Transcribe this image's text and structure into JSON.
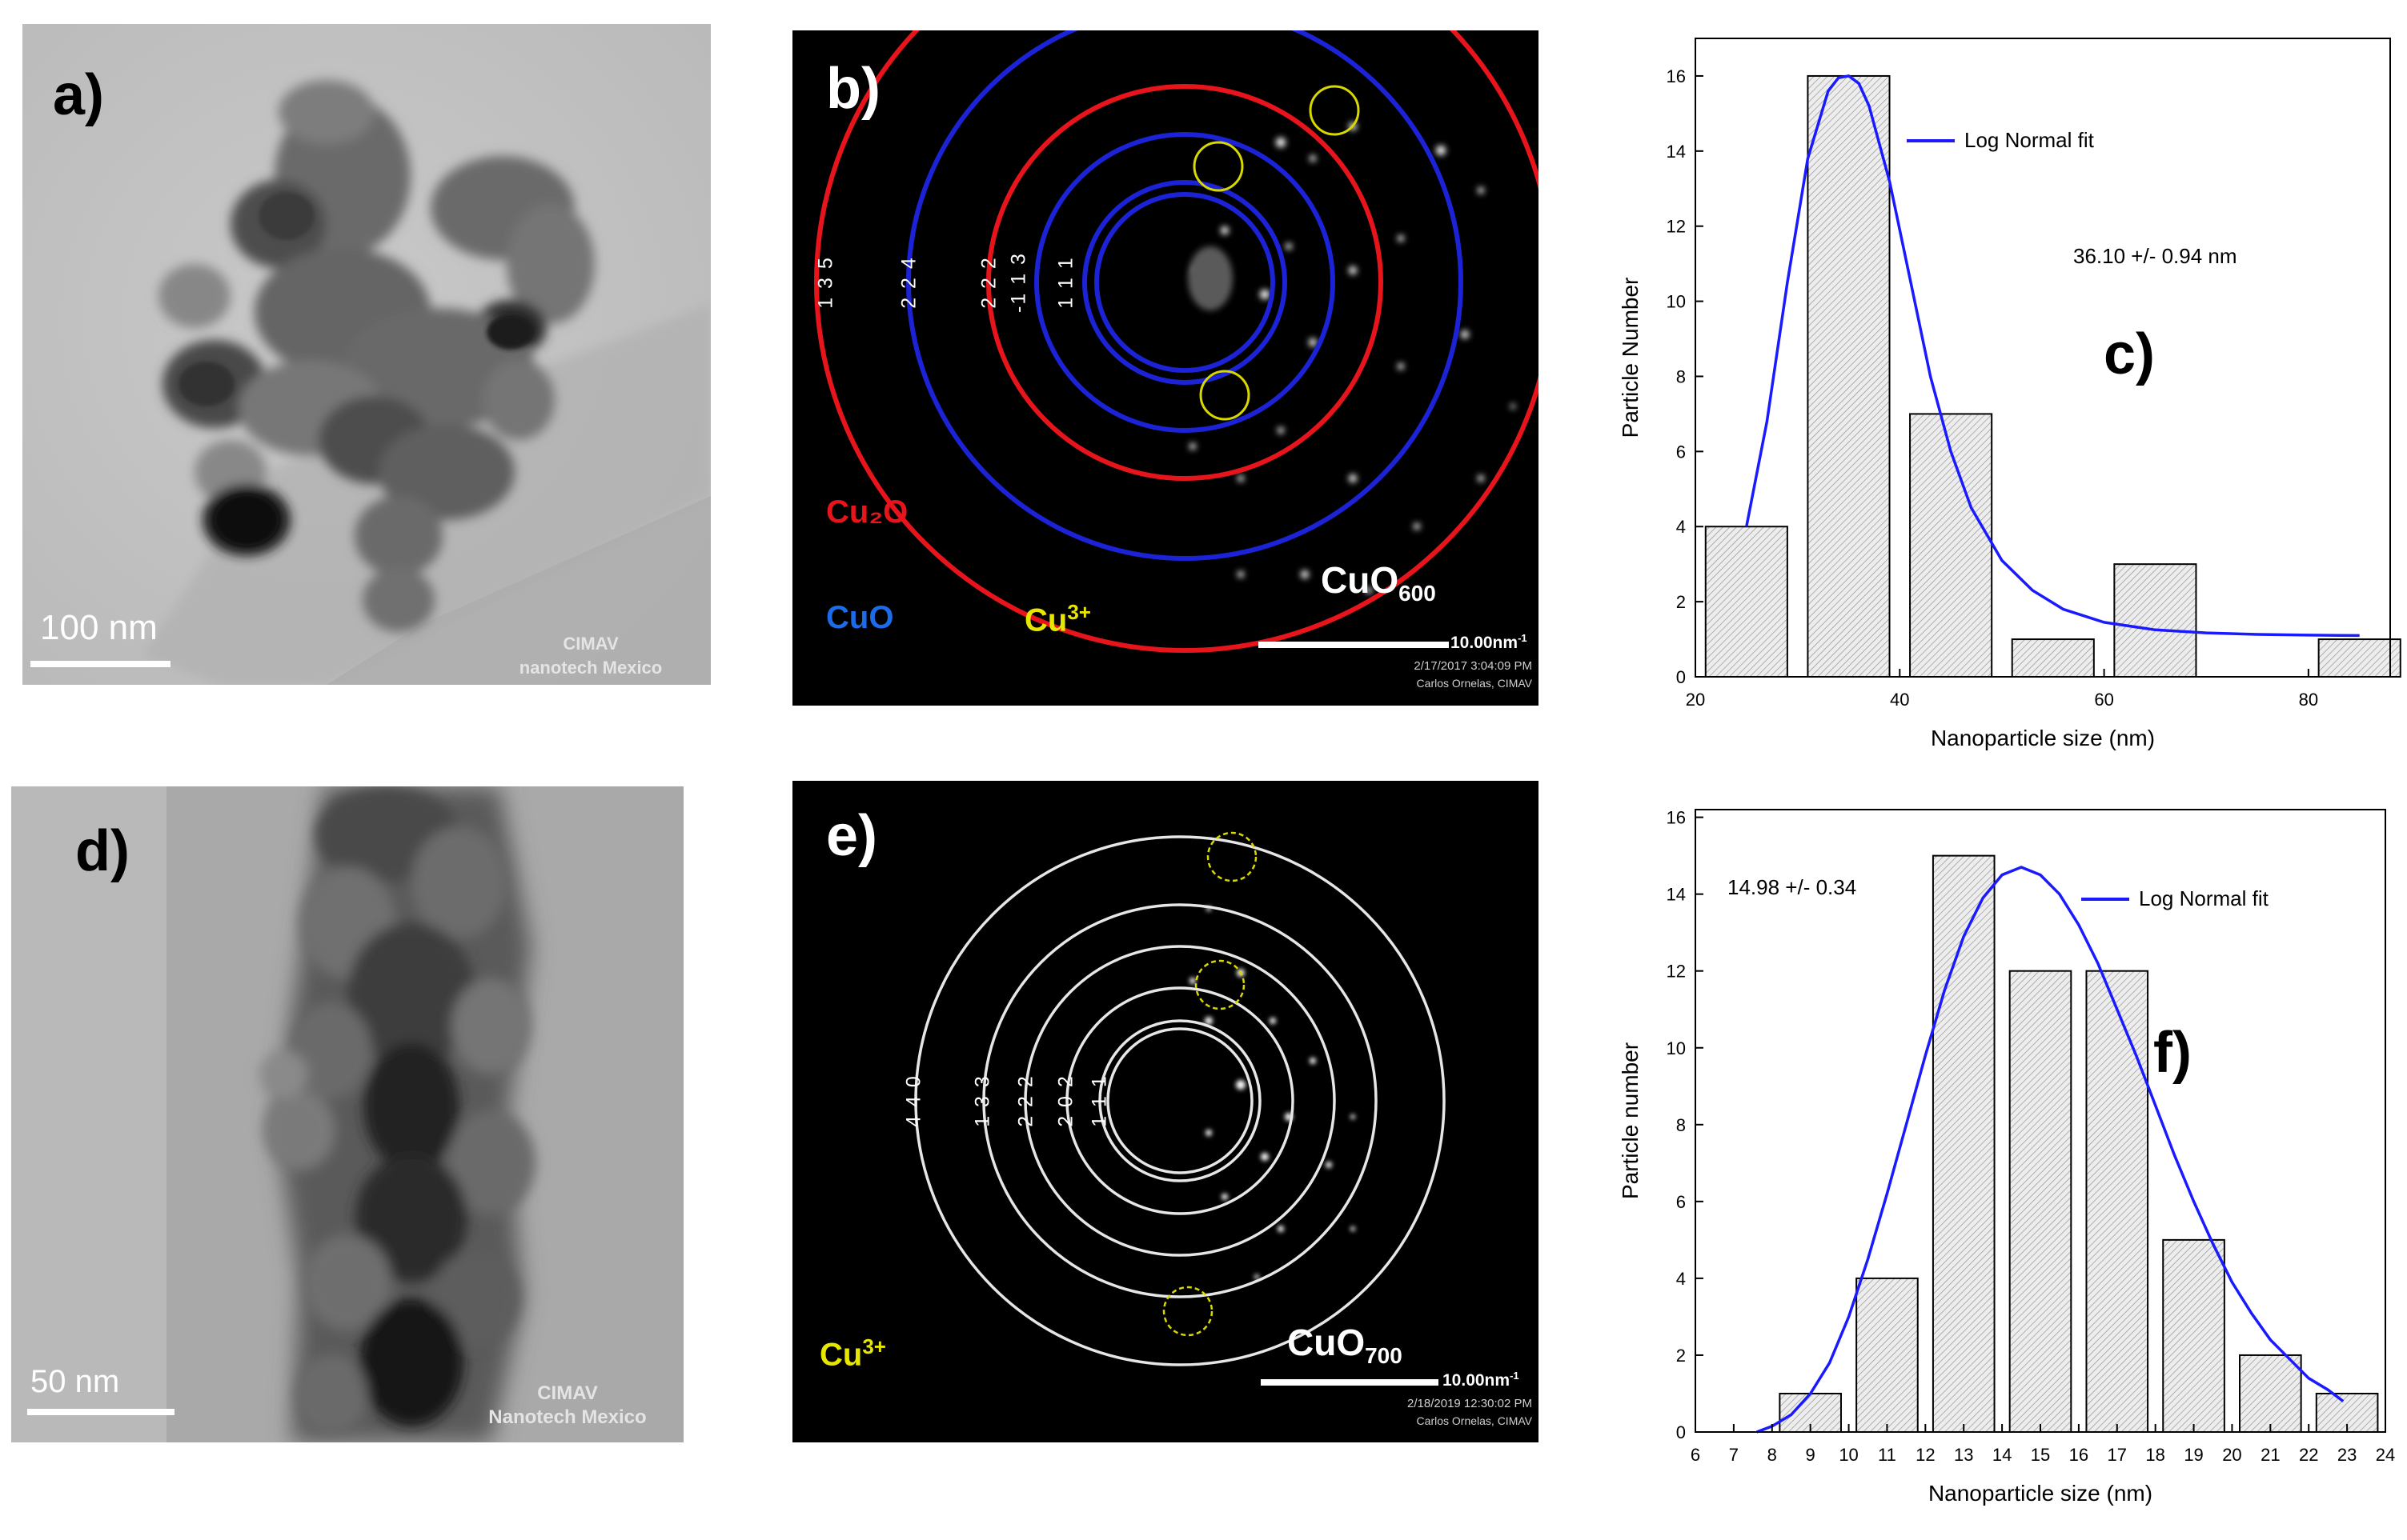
{
  "panel_a": {
    "label": "a)",
    "scale_bar": "100 nm",
    "watermark_line1": "CIMAV",
    "watermark_line2": "nanotech Mexico"
  },
  "panel_b": {
    "label": "b)",
    "ring_indices": [
      "1 3 5",
      "2 2 4",
      "2 2 2",
      "-1 1 3",
      "1 1 1"
    ],
    "legend_cu2o": "Cu₂O",
    "legend_cuo": "CuO",
    "legend_cu3": "Cu",
    "legend_cu3_sup": "3+",
    "sample": "CuO",
    "sample_sub": "600",
    "scale_bar": "10.00nm",
    "scale_sup": "-1",
    "timestamp": "2/17/2017 3:04:09 PM",
    "instrument": "Carlos Ornelas, CIMAV",
    "colors": {
      "cu2o": "#e8141c",
      "cuo": "#1c22d6",
      "cu3": "#e6e600"
    }
  },
  "panel_e": {
    "label": "e)",
    "ring_indices": [
      "4 4 0",
      "1 3 3",
      "2 2 2",
      "2 0 2",
      "1 1 1"
    ],
    "legend_cu3": "Cu",
    "legend_cu3_sup": "3+",
    "sample": "CuO",
    "sample_sub": "700",
    "scale_bar": "10.00nm",
    "scale_sup": "-1",
    "timestamp": "2/18/2019 12:30:02 PM",
    "instrument": "Carlos Ornelas, CIMAV"
  },
  "panel_d": {
    "label": "d)",
    "scale_bar": "50 nm",
    "watermark_line1": "CIMAV",
    "watermark_line2": "Nanotech Mexico"
  },
  "panel_c": {
    "label": "c)",
    "annotation": "36.10 +/- 0.94 nm"
  },
  "panel_f": {
    "label": "f)",
    "annotation": "14.98 +/- 0.34"
  },
  "chart_data": [
    {
      "type": "bar",
      "panel": "c",
      "xlabel": "Nanoparticle size (nm)",
      "ylabel": "Particle Number",
      "xlim": [
        20,
        88
      ],
      "ylim": [
        0,
        17
      ],
      "xticks": [
        20,
        40,
        60,
        80
      ],
      "yticks": [
        0,
        2,
        4,
        6,
        8,
        10,
        12,
        14,
        16
      ],
      "bins": [
        {
          "x0": 21,
          "x1": 29,
          "value": 4
        },
        {
          "x0": 31,
          "x1": 39,
          "value": 16
        },
        {
          "x0": 41,
          "x1": 49,
          "value": 7
        },
        {
          "x0": 51,
          "x1": 59,
          "value": 1
        },
        {
          "x0": 61,
          "x1": 69,
          "value": 3
        },
        {
          "x0": 81,
          "x1": 89,
          "value": 1
        }
      ],
      "fit": {
        "name": "Log Normal fit",
        "color": "#1a1aff",
        "x": [
          25,
          27,
          29,
          31,
          33,
          34,
          35,
          36,
          37,
          39,
          41,
          43,
          45,
          47,
          50,
          53,
          56,
          60,
          65,
          70,
          75,
          80,
          85
        ],
        "y": [
          4.0,
          6.8,
          10.5,
          13.8,
          15.6,
          15.95,
          16.0,
          15.8,
          15.2,
          13.2,
          10.6,
          8.0,
          6.0,
          4.5,
          3.1,
          2.3,
          1.8,
          1.45,
          1.25,
          1.17,
          1.13,
          1.11,
          1.1
        ]
      }
    },
    {
      "type": "bar",
      "panel": "f",
      "xlabel": "Nanoparticle size (nm)",
      "ylabel": "Particle number",
      "xlim": [
        6,
        24
      ],
      "ylim": [
        0,
        16.2
      ],
      "xticks": [
        6,
        7,
        8,
        9,
        10,
        11,
        12,
        13,
        14,
        15,
        16,
        17,
        18,
        19,
        20,
        21,
        22,
        23,
        24
      ],
      "yticks": [
        0,
        2,
        4,
        6,
        8,
        10,
        12,
        14,
        16
      ],
      "bins": [
        {
          "x0": 8.2,
          "x1": 9.8,
          "value": 1
        },
        {
          "x0": 10.2,
          "x1": 11.8,
          "value": 4
        },
        {
          "x0": 12.2,
          "x1": 13.8,
          "value": 15
        },
        {
          "x0": 14.2,
          "x1": 15.8,
          "value": 12
        },
        {
          "x0": 16.2,
          "x1": 17.8,
          "value": 12
        },
        {
          "x0": 18.2,
          "x1": 19.8,
          "value": 5
        },
        {
          "x0": 20.2,
          "x1": 21.8,
          "value": 2
        },
        {
          "x0": 22.2,
          "x1": 23.8,
          "value": 1
        }
      ],
      "fit": {
        "name": "Log Normal fit",
        "color": "#1a1aff",
        "x": [
          7.6,
          8,
          8.5,
          9,
          9.5,
          10,
          10.5,
          11,
          11.5,
          12,
          12.5,
          13,
          13.5,
          14,
          14.5,
          15,
          15.5,
          16,
          16.5,
          17,
          17.5,
          18,
          18.5,
          19,
          19.5,
          20,
          20.5,
          21,
          21.5,
          22,
          22.5,
          22.9
        ],
        "y": [
          0.0,
          0.15,
          0.45,
          1.0,
          1.8,
          3.0,
          4.5,
          6.2,
          8.0,
          9.8,
          11.5,
          12.9,
          13.9,
          14.5,
          14.7,
          14.5,
          14.0,
          13.2,
          12.2,
          11.0,
          9.8,
          8.5,
          7.2,
          6.0,
          4.9,
          3.9,
          3.1,
          2.4,
          1.9,
          1.4,
          1.1,
          0.8
        ]
      }
    }
  ]
}
